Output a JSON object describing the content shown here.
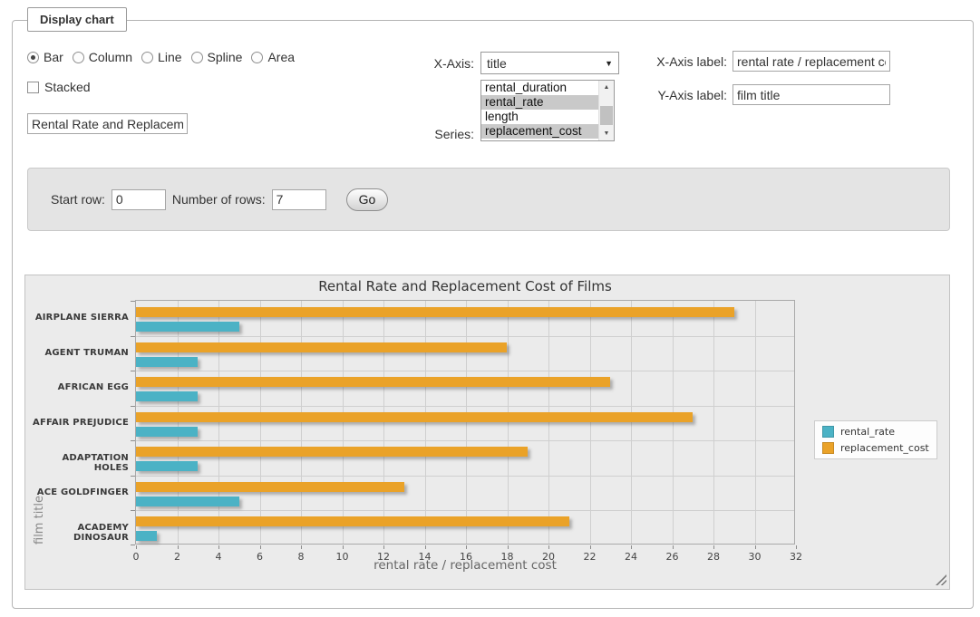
{
  "form": {
    "legend": "Display chart",
    "chart_types": {
      "options": [
        "Bar",
        "Column",
        "Line",
        "Spline",
        "Area"
      ],
      "selected": "Bar"
    },
    "stacked": {
      "label": "Stacked",
      "checked": false
    },
    "title_input": {
      "value": "Rental Rate and Replacement Cost of Films"
    },
    "x_axis": {
      "label": "X-Axis:",
      "selected": "title"
    },
    "series_select": {
      "label": "Series:",
      "options": [
        "rental_duration",
        "rental_rate",
        "length",
        "replacement_cost"
      ],
      "selected": [
        "rental_rate",
        "replacement_cost"
      ]
    },
    "x_axis_label": {
      "label": "X-Axis label:",
      "value": "rental rate / replacement cost"
    },
    "y_axis_label": {
      "label": "Y-Axis label:",
      "value": "film title"
    }
  },
  "row_controls": {
    "start_row": {
      "label": "Start row:",
      "value": "0"
    },
    "num_rows": {
      "label": "Number of rows:",
      "value": "7"
    },
    "go_label": "Go"
  },
  "chart_data": {
    "type": "bar",
    "orientation": "horizontal",
    "title": "Rental Rate and Replacement Cost of Films",
    "categories": [
      "AIRPLANE SIERRA",
      "AGENT TRUMAN",
      "AFRICAN EGG",
      "AFFAIR PREJUDICE",
      "ADAPTATION HOLES",
      "ACE GOLDFINGER",
      "ACADEMY DINOSAUR"
    ],
    "series": [
      {
        "name": "rental_rate",
        "color": "#4bb2c5",
        "values": [
          4.99,
          2.99,
          2.99,
          2.99,
          2.99,
          4.99,
          0.99
        ]
      },
      {
        "name": "replacement_cost",
        "color": "#EAA228",
        "values": [
          28.99,
          17.99,
          22.99,
          26.99,
          18.99,
          12.99,
          20.99
        ]
      }
    ],
    "xlabel": "rental rate / replacement cost",
    "ylabel": "film title",
    "xlim": [
      0,
      32
    ],
    "x_tick_step": 2,
    "grid": true,
    "legend_position": "right",
    "background": "#ebebeb"
  }
}
